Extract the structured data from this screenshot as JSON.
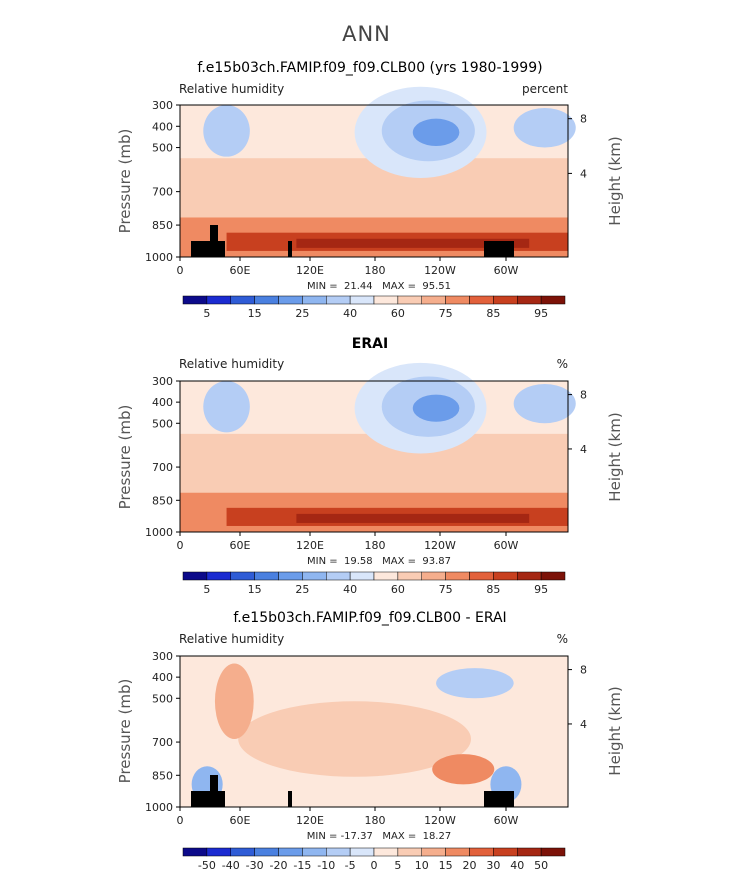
{
  "figure": {
    "title": "ANN"
  },
  "chart_data": [
    {
      "type": "heatmap",
      "title": "f.e15b03ch.FAMIP.f09_f09.CLB00 (yrs 1980-1999)",
      "variable_label": "Relative humidity",
      "units_label": "percent",
      "ylabel_left": "Pressure (mb)",
      "ylabel_right": "Height (km)",
      "x_ticks": [
        "0",
        "60E",
        "120E",
        "180",
        "120W",
        "60W"
      ],
      "y_ticks": [
        "300",
        "400",
        "500",
        "700",
        "850",
        "1000"
      ],
      "y_ticks_right": [
        "8",
        "4"
      ],
      "ylim_mb": [
        1000,
        300
      ],
      "min_label": "MIN =  21.44   MAX =  95.51",
      "stats": {
        "min": 21.44,
        "max": 95.51
      },
      "colorbar": {
        "levels": [
          5,
          10,
          15,
          20,
          25,
          30,
          40,
          50,
          60,
          70,
          75,
          80,
          85,
          90,
          95
        ],
        "tick_labels": [
          "5",
          "15",
          "25",
          "40",
          "60",
          "75",
          "85",
          "95"
        ],
        "colors": [
          "#0c0a8a",
          "#1b2bd1",
          "#2f5cd6",
          "#4a80e0",
          "#6b9cea",
          "#8fb6f0",
          "#b4cdf5",
          "#d9e6fa",
          "#fde8dc",
          "#f9ccb4",
          "#f5ae8d",
          "#ef8a62",
          "#e2613b",
          "#c8401f",
          "#a52713",
          "#7c1208"
        ]
      }
    },
    {
      "type": "heatmap",
      "title": "ERAI",
      "variable_label": "Relative humidity",
      "units_label": "%",
      "ylabel_left": "Pressure (mb)",
      "ylabel_right": "Height (km)",
      "x_ticks": [
        "0",
        "60E",
        "120E",
        "180",
        "120W",
        "60W"
      ],
      "y_ticks": [
        "300",
        "400",
        "500",
        "700",
        "850",
        "1000"
      ],
      "y_ticks_right": [
        "8",
        "4"
      ],
      "ylim_mb": [
        1000,
        300
      ],
      "min_label": "MIN =  19.58   MAX =  93.87",
      "stats": {
        "min": 19.58,
        "max": 93.87
      },
      "colorbar": {
        "levels": [
          5,
          10,
          15,
          20,
          25,
          30,
          40,
          50,
          60,
          70,
          75,
          80,
          85,
          90,
          95
        ],
        "tick_labels": [
          "5",
          "15",
          "25",
          "40",
          "60",
          "75",
          "85",
          "95"
        ],
        "colors": [
          "#0c0a8a",
          "#1b2bd1",
          "#2f5cd6",
          "#4a80e0",
          "#6b9cea",
          "#8fb6f0",
          "#b4cdf5",
          "#d9e6fa",
          "#fde8dc",
          "#f9ccb4",
          "#f5ae8d",
          "#ef8a62",
          "#e2613b",
          "#c8401f",
          "#a52713",
          "#7c1208"
        ]
      }
    },
    {
      "type": "heatmap",
      "title": "f.e15b03ch.FAMIP.f09_f09.CLB00 - ERAI",
      "variable_label": "Relative humidity",
      "units_label": "%",
      "ylabel_left": "Pressure (mb)",
      "ylabel_right": "Height (km)",
      "x_ticks": [
        "0",
        "60E",
        "120E",
        "180",
        "120W",
        "60W"
      ],
      "y_ticks": [
        "300",
        "400",
        "500",
        "700",
        "850",
        "1000"
      ],
      "y_ticks_right": [
        "8",
        "4"
      ],
      "ylim_mb": [
        1000,
        300
      ],
      "min_label": "MIN = -17.37   MAX =  18.27",
      "stats": {
        "min": -17.37,
        "max": 18.27
      },
      "colorbar": {
        "levels": [
          -50,
          -40,
          -30,
          -20,
          -15,
          -10,
          -5,
          0,
          5,
          10,
          15,
          20,
          30,
          40,
          50
        ],
        "tick_labels": [
          "-50",
          "-40",
          "-30",
          "-20",
          "-15",
          "-10",
          "-5",
          "0",
          "5",
          "10",
          "15",
          "20",
          "30",
          "40",
          "50"
        ],
        "colors": [
          "#0c0a8a",
          "#1b2bd1",
          "#2f5cd6",
          "#4a80e0",
          "#6b9cea",
          "#8fb6f0",
          "#b4cdf5",
          "#d9e6fa",
          "#fde8dc",
          "#f9ccb4",
          "#f5ae8d",
          "#ef8a62",
          "#e2613b",
          "#c8401f",
          "#a52713",
          "#7c1208"
        ]
      }
    }
  ]
}
